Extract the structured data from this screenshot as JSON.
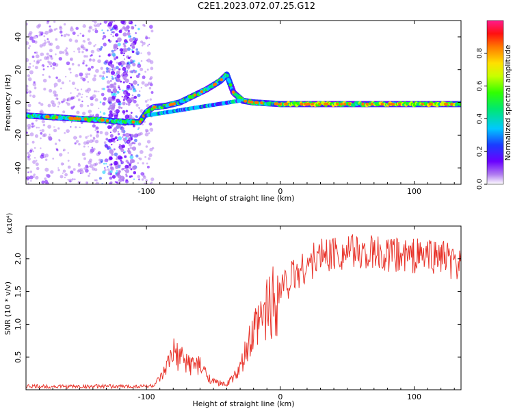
{
  "title": "C2E1.2023.072.07.25.G12",
  "chart_data": [
    {
      "type": "heatmap",
      "xlabel": "Height of straight line (km)",
      "ylabel": "Frequency (Hz)",
      "xlim": [
        -190,
        135
      ],
      "ylim": [
        -50,
        50
      ],
      "x_ticks": [
        -100,
        0,
        100
      ],
      "y_ticks": [
        -40,
        -20,
        0,
        20,
        40
      ],
      "colorbar": {
        "label": "Normalized spectral amplitude",
        "range": [
          0,
          1
        ],
        "ticks": [
          "0.0",
          "0.2",
          "0.4",
          "0.6",
          "0.8"
        ]
      },
      "trace_points": [
        {
          "x": -190,
          "y": -8
        },
        {
          "x": -170,
          "y": -9
        },
        {
          "x": -150,
          "y": -10
        },
        {
          "x": -130,
          "y": -11
        },
        {
          "x": -115,
          "y": -12
        },
        {
          "x": -105,
          "y": -12
        },
        {
          "x": -100,
          "y": -6
        },
        {
          "x": -95,
          "y": -3
        },
        {
          "x": -85,
          "y": -2
        },
        {
          "x": -75,
          "y": 0
        },
        {
          "x": -65,
          "y": 4
        },
        {
          "x": -55,
          "y": 8
        },
        {
          "x": -45,
          "y": 13
        },
        {
          "x": -40,
          "y": 17
        },
        {
          "x": -35,
          "y": 6
        },
        {
          "x": -28,
          "y": 1
        },
        {
          "x": -20,
          "y": 0
        },
        {
          "x": 0,
          "y": -1
        },
        {
          "x": 20,
          "y": -1
        },
        {
          "x": 60,
          "y": -1
        },
        {
          "x": 100,
          "y": -1
        },
        {
          "x": 135,
          "y": -1
        }
      ]
    },
    {
      "type": "line",
      "xlabel": "Height of straight line (km)",
      "ylabel": "SNR (10 * v/v)",
      "scale_label": "(x10⁴)",
      "xlim": [
        -190,
        135
      ],
      "ylim": [
        0,
        2.5
      ],
      "x_ticks": [
        -100,
        0,
        100
      ],
      "y_ticks": [
        0.5,
        1.0,
        1.5,
        2.0
      ],
      "series": [
        {
          "color": "#e8342b",
          "x": [
            -190,
            -170,
            -150,
            -130,
            -110,
            -95,
            -88,
            -80,
            -70,
            -60,
            -50,
            -40,
            -30,
            -25,
            -20,
            -15,
            -10,
            -5,
            0,
            10,
            20,
            30,
            40,
            60,
            80,
            100,
            120,
            135
          ],
          "y": [
            0.05,
            0.05,
            0.05,
            0.05,
            0.05,
            0.06,
            0.2,
            0.55,
            0.42,
            0.35,
            0.12,
            0.08,
            0.3,
            0.6,
            0.85,
            1.0,
            1.25,
            1.4,
            1.55,
            1.75,
            1.9,
            2.05,
            2.1,
            2.1,
            2.05,
            2.05,
            2.05,
            1.85
          ]
        }
      ]
    }
  ]
}
